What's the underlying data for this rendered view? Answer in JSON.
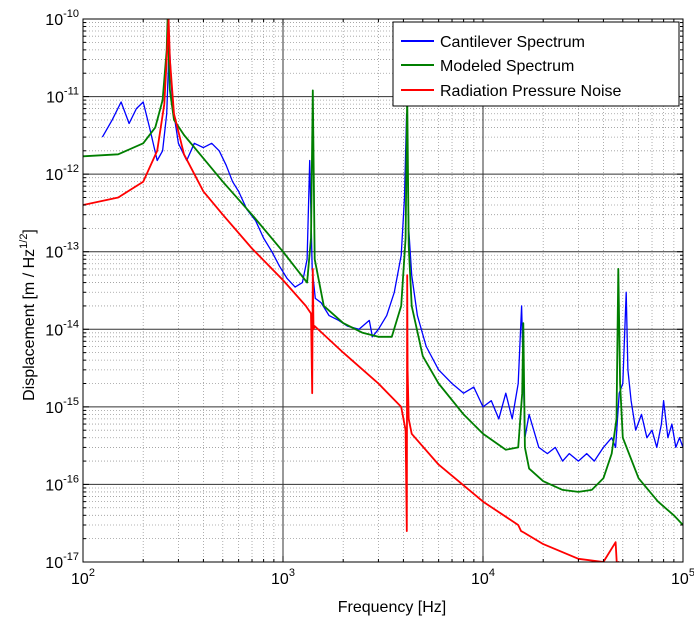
{
  "chart_data": {
    "type": "line",
    "xlabel": "Frequency [Hz]",
    "ylabel_prefix": "Displacement [m / Hz",
    "ylabel_exp": "1/2",
    "ylabel_suffix": "]",
    "x_scale": "log",
    "y_scale": "log",
    "xlim": [
      100,
      100000
    ],
    "ylim": [
      1e-17,
      1e-10
    ],
    "grid": "on (major and minor, dotted minor)",
    "legend_position": "top-right",
    "x_ticks": [
      {
        "base": "10",
        "exp": "2"
      },
      {
        "base": "10",
        "exp": "3"
      },
      {
        "base": "10",
        "exp": "4"
      },
      {
        "base": "10",
        "exp": "5"
      }
    ],
    "y_ticks": [
      {
        "base": "10",
        "exp": "-10"
      },
      {
        "base": "10",
        "exp": "-11"
      },
      {
        "base": "10",
        "exp": "-12"
      },
      {
        "base": "10",
        "exp": "-13"
      },
      {
        "base": "10",
        "exp": "-14"
      },
      {
        "base": "10",
        "exp": "-15"
      },
      {
        "base": "10",
        "exp": "-16"
      },
      {
        "base": "10",
        "exp": "-17"
      }
    ],
    "series": [
      {
        "name": "Cantilever Spectrum",
        "color": "#0000ff",
        "x": [
          125,
          140,
          155,
          170,
          185,
          200,
          215,
          235,
          250,
          262,
          270,
          280,
          300,
          330,
          360,
          400,
          440,
          480,
          520,
          560,
          600,
          660,
          730,
          800,
          880,
          960,
          1050,
          1150,
          1250,
          1320,
          1360,
          1400,
          1450,
          1550,
          1700,
          1900,
          2100,
          2400,
          2700,
          2800,
          3000,
          3300,
          3600,
          3900,
          4050,
          4150,
          4250,
          4400,
          4700,
          5200,
          6000,
          7000,
          8000,
          9000,
          10000,
          11000,
          12000,
          13000,
          14000,
          15000,
          15600,
          16200,
          17000,
          19000,
          21000,
          23000,
          25000,
          27000,
          30000,
          33000,
          36000,
          40000,
          44000,
          46000,
          48000,
          50000,
          52000,
          53000,
          55000,
          58000,
          62000,
          66000,
          70000,
          74000,
          78000,
          80000,
          84000,
          88000,
          92000,
          96000,
          100000
        ],
        "y": [
          3e-12,
          5e-12,
          8.5e-12,
          4.5e-12,
          7e-12,
          8.5e-12,
          4e-12,
          1.5e-12,
          2e-12,
          6e-12,
          5e-11,
          8e-12,
          2.5e-12,
          1.5e-12,
          2.5e-12,
          2.2e-12,
          2.5e-12,
          2e-12,
          1.3e-12,
          8e-13,
          6e-13,
          3.5e-13,
          2.5e-13,
          1.5e-13,
          1e-13,
          6.5e-14,
          4.5e-14,
          3.5e-14,
          4e-14,
          8e-14,
          1.5e-12,
          6e-14,
          2.5e-14,
          2.2e-14,
          1.5e-14,
          1.3e-14,
          1.1e-14,
          1e-14,
          1.3e-14,
          8e-15,
          1e-14,
          1.5e-14,
          3e-14,
          9e-14,
          5e-13,
          6e-12,
          2e-13,
          5e-14,
          1.5e-14,
          6e-15,
          3e-15,
          2e-15,
          1.5e-15,
          1.8e-15,
          1e-15,
          1.2e-15,
          7e-16,
          1.5e-15,
          7e-16,
          2e-15,
          2e-14,
          4e-16,
          8e-16,
          3e-16,
          2.5e-16,
          3e-16,
          2e-16,
          2.5e-16,
          2e-16,
          2.5e-16,
          2e-16,
          3e-16,
          4e-16,
          3e-16,
          1.5e-15,
          2e-15,
          3e-14,
          3e-15,
          1.2e-15,
          5e-16,
          8e-16,
          4e-16,
          5e-16,
          3e-16,
          6e-16,
          1.2e-15,
          4e-16,
          6e-16,
          3e-16,
          4e-16,
          3e-16
        ]
      },
      {
        "name": "Modeled Spectrum",
        "color": "#007f00",
        "x": [
          100,
          150,
          200,
          230,
          250,
          262,
          265,
          268,
          272,
          285,
          320,
          400,
          500,
          700,
          1000,
          1200,
          1320,
          1380,
          1410,
          1440,
          1600,
          2000,
          2500,
          3000,
          3500,
          3900,
          4100,
          4180,
          4250,
          4400,
          5000,
          6000,
          8000,
          10000,
          13000,
          15000,
          15700,
          15900,
          16200,
          17000,
          20000,
          25000,
          30000,
          35000,
          40000,
          44000,
          46500,
          47500,
          48500,
          50000,
          60000,
          75000,
          90000,
          100000
        ],
        "y": [
          1.7e-12,
          1.8e-12,
          2.5e-12,
          4e-12,
          9e-12,
          4e-11,
          1e-10,
          4e-11,
          1.2e-11,
          5e-12,
          3.2e-12,
          1.6e-12,
          8e-13,
          3e-13,
          1e-13,
          5.5e-14,
          4e-14,
          1.5e-13,
          1.2e-11,
          8e-14,
          2e-14,
          1.2e-14,
          9e-15,
          8e-15,
          8e-15,
          2e-14,
          1.5e-13,
          1.1e-11,
          1.2e-13,
          2e-14,
          4.5e-15,
          2e-15,
          8e-16,
          4.5e-16,
          2.8e-16,
          3e-16,
          1.5e-15,
          1.2e-14,
          3e-16,
          1.6e-16,
          1.1e-16,
          8.5e-17,
          8e-17,
          8.5e-17,
          1.2e-16,
          2.5e-16,
          7e-16,
          6e-14,
          2e-15,
          4e-16,
          1.2e-16,
          6e-17,
          4e-17,
          3e-17
        ]
      },
      {
        "name": "Radiation Pressure Noise",
        "color": "#ff0000",
        "x": [
          100,
          150,
          200,
          235,
          255,
          265,
          268,
          272,
          285,
          320,
          400,
          500,
          700,
          1000,
          1300,
          1380,
          1400,
          1410,
          1420,
          1440,
          2000,
          3000,
          3900,
          4100,
          4160,
          4180,
          4200,
          4250,
          4400,
          6000,
          10000,
          15000,
          15500,
          16000,
          20000,
          30000,
          40000,
          46000,
          47000,
          47400,
          47800,
          48000
        ],
        "y": [
          4e-13,
          5e-13,
          8e-13,
          2e-12,
          8e-12,
          5e-11,
          1e-10,
          3e-11,
          6e-12,
          1.8e-12,
          6e-13,
          3e-13,
          1.1e-13,
          4.3e-14,
          2e-14,
          1.6e-14,
          1.5e-15,
          6e-14,
          1e-14,
          1.1e-14,
          5e-15,
          2e-15,
          1e-15,
          5e-16,
          2.5e-17,
          5e-14,
          3e-15,
          7e-16,
          4.5e-16,
          1.8e-16,
          6e-17,
          3e-17,
          2.5e-17,
          2.4e-17,
          1.7e-17,
          1.1e-17,
          1e-17,
          1.8e-17,
          7e-18,
          1e-17,
          1e-17,
          1e-17
        ]
      }
    ]
  }
}
